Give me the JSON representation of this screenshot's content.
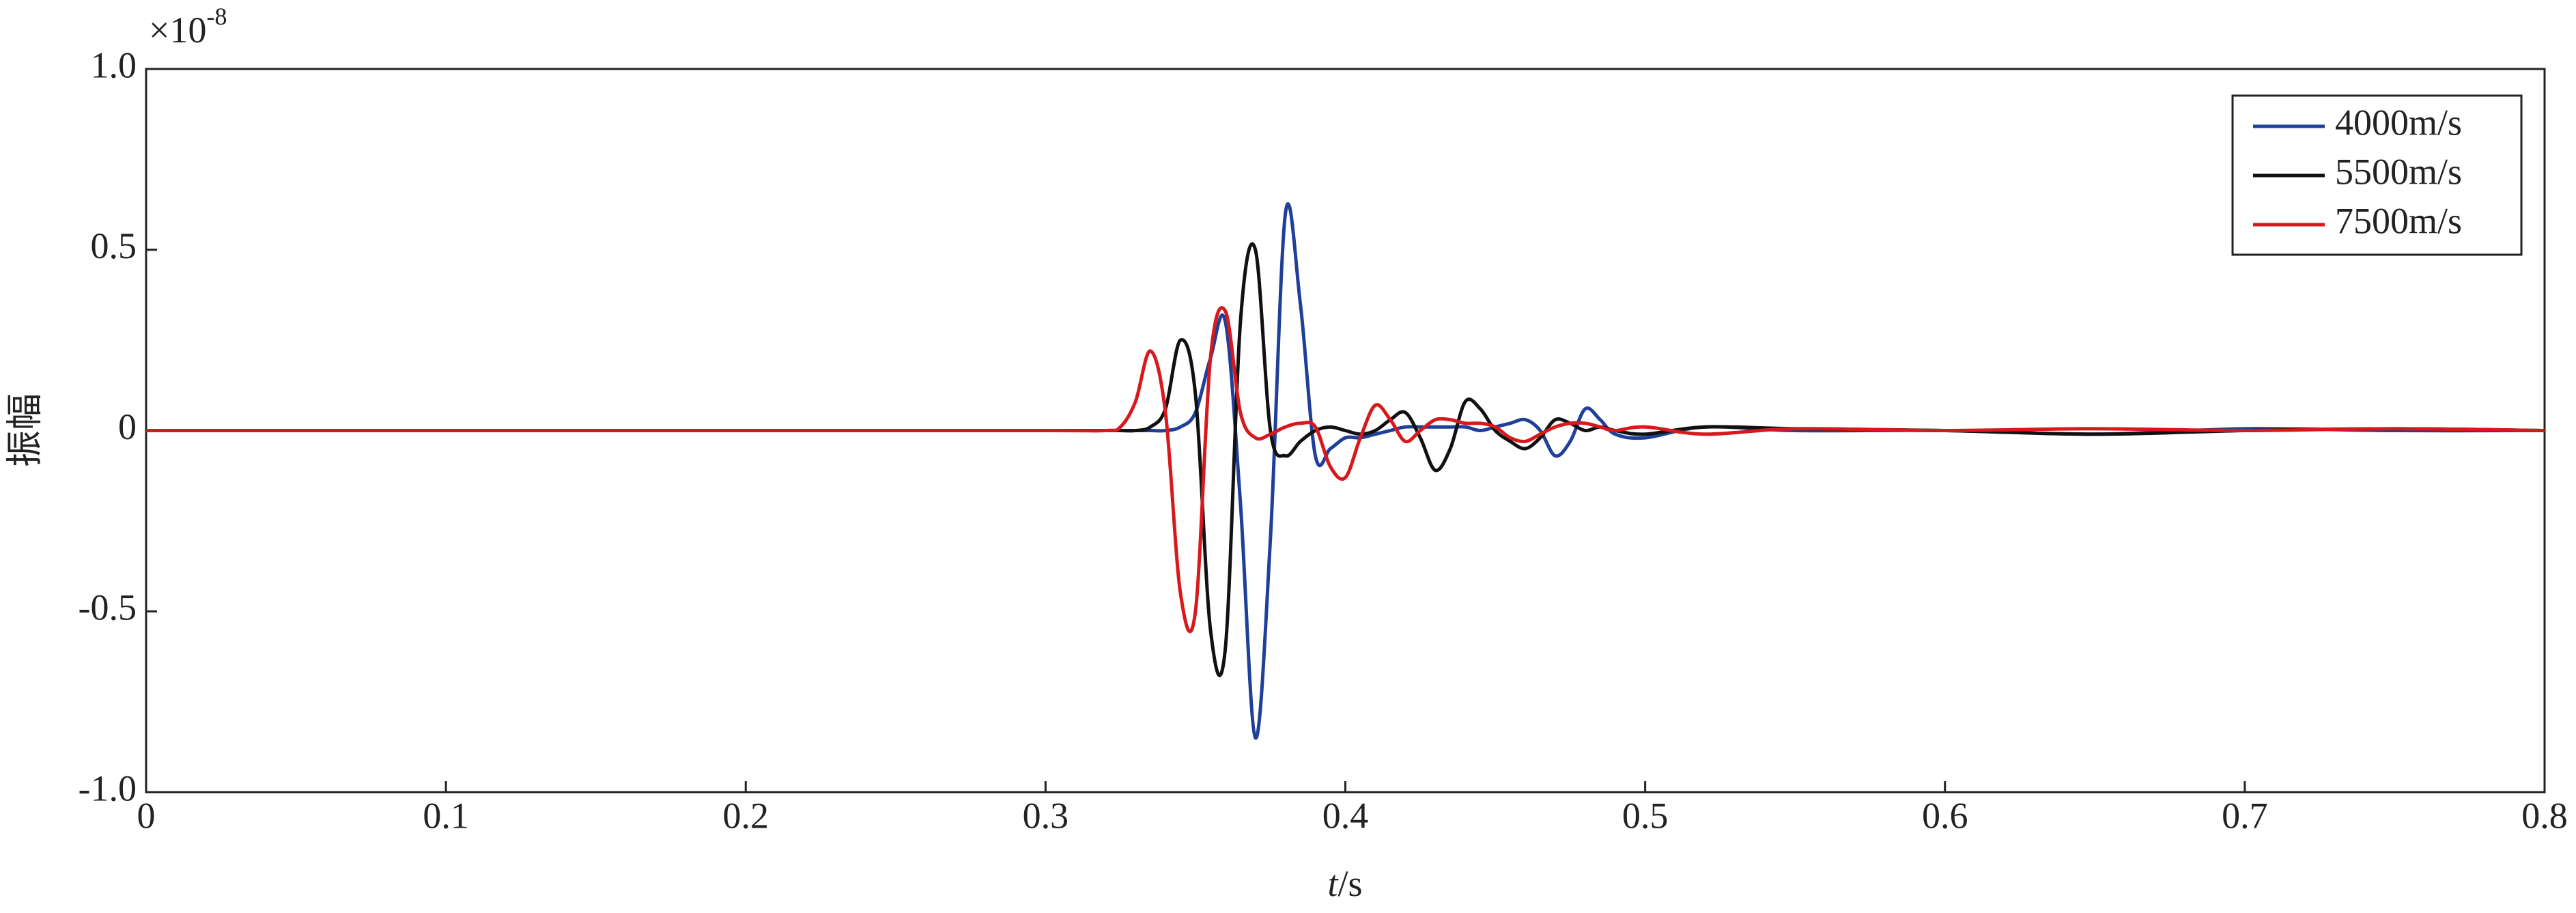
{
  "chart_data": {
    "type": "line",
    "ylabel": "振幅",
    "xlabel": {
      "var": "t",
      "unit": "/s"
    },
    "y_scale_note": {
      "base": "×10",
      "exponent": "-8"
    },
    "x": [
      0,
      0.1,
      0.2,
      0.3,
      0.32,
      0.325,
      0.33,
      0.335,
      0.34,
      0.345,
      0.35,
      0.355,
      0.36,
      0.365,
      0.37,
      0.375,
      0.38,
      0.385,
      0.39,
      0.395,
      0.4,
      0.405,
      0.41,
      0.415,
      0.42,
      0.425,
      0.43,
      0.435,
      0.44,
      0.445,
      0.45,
      0.455,
      0.46,
      0.465,
      0.47,
      0.475,
      0.48,
      0.485,
      0.49,
      0.5,
      0.52,
      0.55,
      0.6,
      0.65,
      0.7,
      0.75,
      0.8
    ],
    "series": [
      {
        "name": "4000m/s",
        "color": "#1f3f99",
        "values": [
          0,
          0,
          0,
          0,
          0,
          0,
          0,
          0,
          0,
          0.01,
          0.05,
          0.2,
          0.3,
          -0.2,
          -0.85,
          -0.3,
          0.6,
          0.35,
          -0.07,
          -0.05,
          -0.02,
          -0.02,
          -0.01,
          0,
          0.01,
          0.01,
          0.01,
          0.01,
          0.01,
          0,
          0.01,
          0.02,
          0.03,
          0,
          -0.07,
          -0.03,
          0.06,
          0.03,
          -0.01,
          -0.02,
          0.01,
          0,
          0,
          -0.01,
          0.005,
          0,
          0
        ]
      },
      {
        "name": "5500m/s",
        "color": "#111111",
        "values": [
          0,
          0,
          0,
          0,
          0,
          0,
          0,
          0.01,
          0.06,
          0.25,
          0.1,
          -0.55,
          -0.6,
          0.3,
          0.5,
          0,
          -0.07,
          -0.03,
          0,
          0.01,
          0,
          -0.01,
          0,
          0.03,
          0.05,
          -0.02,
          -0.11,
          -0.05,
          0.08,
          0.06,
          0,
          -0.03,
          -0.05,
          -0.02,
          0.03,
          0.02,
          0,
          0.01,
          0,
          -0.01,
          0.01,
          0.005,
          0,
          -0.01,
          0,
          0.005,
          0
        ]
      },
      {
        "name": "7500m/s",
        "color": "#d7191c",
        "values": [
          0,
          0,
          0,
          0,
          0,
          0.01,
          0.08,
          0.22,
          0.05,
          -0.45,
          -0.5,
          0.2,
          0.33,
          0.05,
          -0.02,
          -0.01,
          0.01,
          0.02,
          0.01,
          -0.1,
          -0.13,
          -0.02,
          0.07,
          0.03,
          -0.03,
          0,
          0.03,
          0.03,
          0.02,
          0.02,
          0.01,
          -0.02,
          -0.03,
          -0.01,
          0.01,
          0.02,
          0.02,
          0.01,
          0,
          0.01,
          -0.01,
          0.005,
          0,
          0.005,
          0,
          0.005,
          0
        ]
      }
    ],
    "xlim": [
      0,
      0.8
    ],
    "xticks": [
      0,
      0.1,
      0.2,
      0.3,
      0.4,
      0.5,
      0.6,
      0.7,
      0.8
    ],
    "ylim": [
      -1,
      1
    ],
    "yticks": [
      {
        "value": -1,
        "label": "-1.0"
      },
      -0.5,
      0,
      0.5,
      {
        "value": 1,
        "label": "1.0"
      }
    ],
    "grid": false,
    "legend": "upper-right"
  }
}
